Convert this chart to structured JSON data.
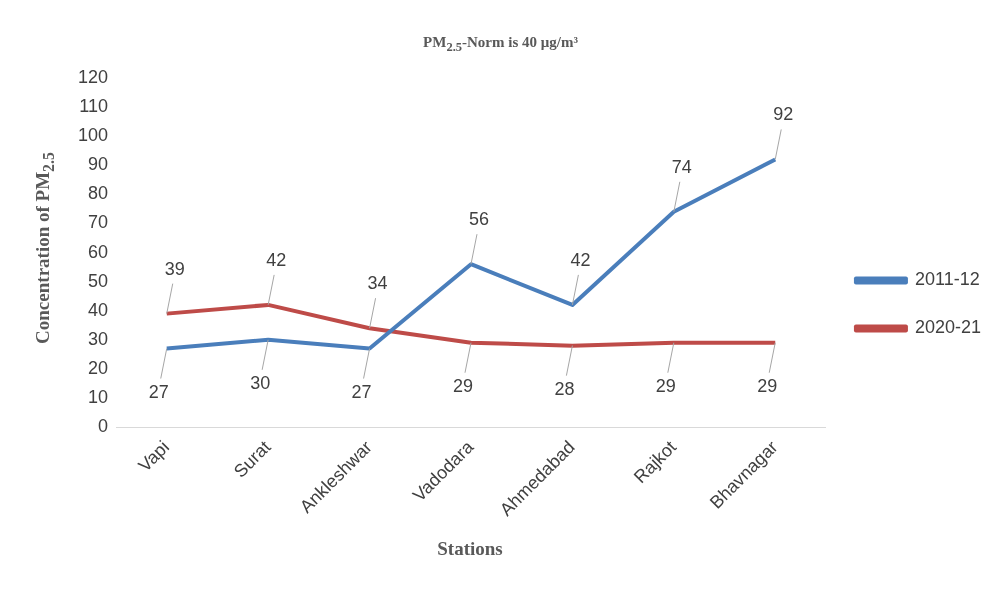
{
  "chart_data": {
    "type": "line",
    "title": "PM$_{2.5}$-Norm is 40 μg/m³",
    "xlabel": "Stations",
    "ylabel": "Concentration of PM$_{2.5}$",
    "categories": [
      "Vapi",
      "Surat",
      "Ankleshwar",
      "Vadodara",
      "Ahmedabad",
      "Rajkot",
      "Bhavnagar"
    ],
    "series": [
      {
        "name": "2011-12",
        "color": "#4a7ebb",
        "values": [
          27,
          30,
          27,
          56,
          42,
          74,
          92
        ]
      },
      {
        "name": "2020-21",
        "color": "#be4b48",
        "values": [
          39,
          42,
          34,
          29,
          28,
          29,
          29
        ]
      }
    ],
    "ylim": [
      0,
      120
    ],
    "yticks": [
      0,
      10,
      20,
      30,
      40,
      50,
      60,
      70,
      80,
      90,
      100,
      110,
      120
    ],
    "grid": false,
    "legend": "right",
    "marker": "none",
    "line_style": "solid",
    "data_labels": true
  }
}
